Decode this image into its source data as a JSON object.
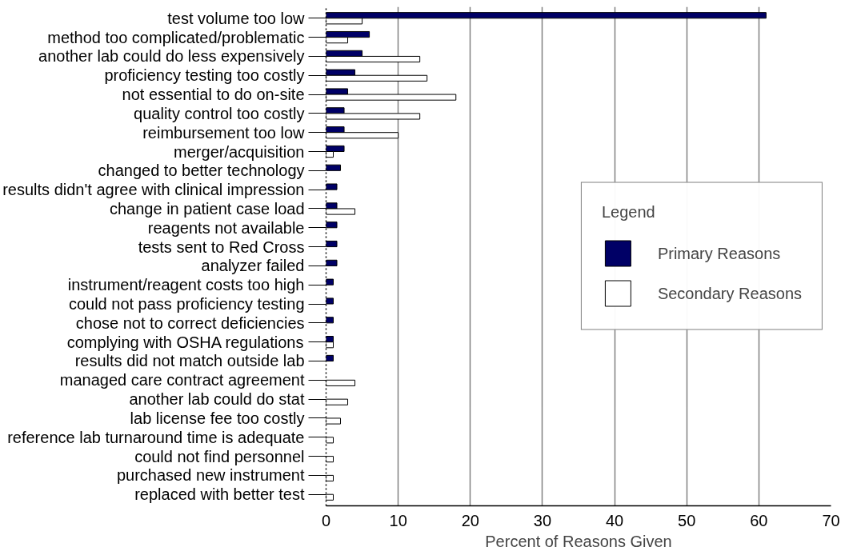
{
  "chart_data": {
    "type": "bar",
    "orientation": "horizontal",
    "xlabel": "Percent of Reasons Given",
    "legend_title": "Legend",
    "legend": "right",
    "grid": "x",
    "categories": [
      "test volume too low",
      "method too complicated/problematic",
      "another lab could do less expensively",
      "proficiency testing too costly",
      "not essential to do on-site",
      "quality control too costly",
      "reimbursement too low",
      "merger/acquisition",
      "changed to better technology",
      "results didn't agree with clinical impression",
      "change in patient case load",
      "reagents not available",
      "tests sent to Red Cross",
      "analyzer failed",
      "instrument/reagent costs too high",
      "could not pass proficiency testing",
      "chose not to correct deficiencies",
      "complying with OSHA regulations",
      "results did not match outside lab",
      "managed care contract agreement",
      "another lab could do stat",
      "lab license fee too costly",
      "reference lab turnaround time is adequate",
      "could not find personnel",
      "purchased new instrument",
      "replaced with better test"
    ],
    "series": [
      {
        "name": "Primary Reasons",
        "color": "#000066",
        "values": [
          61,
          6,
          5,
          4,
          3,
          2.5,
          2.5,
          2.5,
          2,
          1.5,
          1.5,
          1.5,
          1.5,
          1.5,
          1,
          1,
          1,
          1,
          1,
          0,
          0,
          0,
          0,
          0,
          0,
          0
        ]
      },
      {
        "name": "Secondary Reasons",
        "color": "#ffffff",
        "values": [
          5,
          3,
          13,
          14,
          18,
          13,
          10,
          1,
          0,
          0,
          4,
          0,
          0,
          0,
          null,
          0,
          0,
          1,
          0,
          4,
          3,
          2,
          1,
          1,
          1,
          1
        ]
      }
    ],
    "xlim": [
      0,
      70
    ],
    "xticks": [
      0,
      10,
      20,
      30,
      40,
      50,
      60,
      70
    ]
  }
}
